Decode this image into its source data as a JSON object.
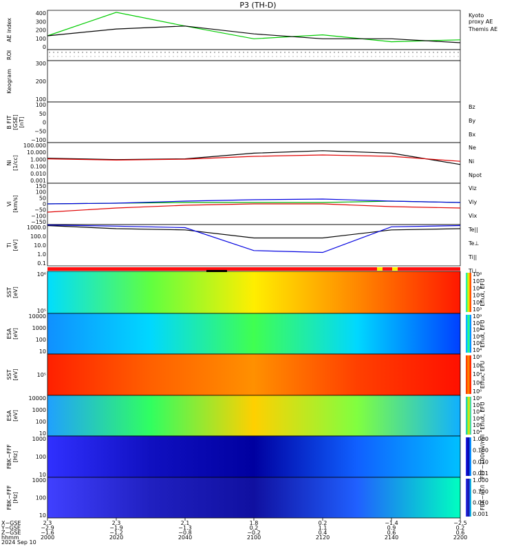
{
  "title": "P3 (TH-D)",
  "panels": [
    {
      "ylabel": "AE index",
      "ticks": [
        "400",
        "300",
        "200",
        "100",
        "0"
      ],
      "legend": [
        {
          "text": "Kyoto\nproxy AE",
          "color": "#00cc00"
        },
        {
          "text": "Themis AE",
          "color": "#000000"
        }
      ]
    },
    {
      "ylabel": "ROI",
      "ticks": [],
      "legend": []
    },
    {
      "ylabel": "Keogram",
      "ticks": [
        "300",
        "200",
        "100"
      ],
      "legend": []
    },
    {
      "ylabel": "B FIT\n[GSE]\n[nT]",
      "ticks": [
        "100",
        "50",
        "0",
        "−50",
        "−100"
      ],
      "legend": [
        {
          "text": "Bz",
          "color": "#e00000"
        },
        {
          "text": "By",
          "color": "#00b000"
        },
        {
          "text": "Bx",
          "color": "#0000e0"
        }
      ]
    },
    {
      "ylabel": "Ni\n[1/cc]",
      "ticks": [
        "100.000",
        "10.000",
        "1.000",
        "0.100",
        "0.010",
        "0.001"
      ],
      "legend": [
        {
          "text": "Ne",
          "color": "#e00000"
        },
        {
          "text": "Ni",
          "color": "#000000"
        },
        {
          "text": "Npot",
          "color": "#0000e0"
        }
      ]
    },
    {
      "ylabel": "Vi\n[km/s]",
      "ticks": [
        "150",
        "100",
        "50",
        "0",
        "−50",
        "−100",
        "−150"
      ],
      "legend": [
        {
          "text": "Viz",
          "color": "#e00000"
        },
        {
          "text": "Viy",
          "color": "#00b000"
        },
        {
          "text": "Vix",
          "color": "#0000e0"
        }
      ]
    },
    {
      "ylabel": "Ti\n[eV]",
      "ticks": [
        "1000.0",
        "100.0",
        "10.0",
        "1.0",
        "0.1"
      ],
      "legend": [
        {
          "text": "Te||",
          "color": "#000000"
        },
        {
          "text": "Te⊥",
          "color": "#e00000"
        },
        {
          "text": "Ti||",
          "color": "#00b000"
        },
        {
          "text": "Ti⊥",
          "color": "#0000e0"
        }
      ]
    },
    {
      "ylabel": "SST\n[eV]",
      "ticks": [
        "10⁶",
        "10⁵"
      ],
      "legend": []
    },
    {
      "ylabel": "ESA\n[eV]",
      "ticks": [
        "10000",
        "1000",
        "100",
        "10"
      ],
      "legend": []
    },
    {
      "ylabel": "SST\n[eV]",
      "ticks": [
        "10⁵"
      ],
      "legend": []
    },
    {
      "ylabel": "ESA\n[eV]",
      "ticks": [
        "10000",
        "1000",
        "100",
        "10"
      ],
      "legend": []
    },
    {
      "ylabel": "FBK−FFF\n[Hz]",
      "ticks": [
        "1000",
        "100",
        "10"
      ],
      "legend": []
    },
    {
      "ylabel": "FBK−FFF\n[Hz]",
      "ticks": [
        "1000",
        "100",
        "10"
      ],
      "legend": []
    }
  ],
  "colorbars": [
    {
      "label": "Eflux, EFU",
      "ticks": [
        "10⁸",
        "10⁷",
        "10⁶",
        "10⁵",
        "10⁴",
        "10³"
      ]
    },
    {
      "label": "Eflux, EFU",
      "ticks": [
        "10⁹",
        "10⁸",
        "10⁷",
        "10⁶",
        "10⁵",
        "10⁴"
      ]
    },
    {
      "label": "Eflux, EFU",
      "ticks": [
        "10⁸",
        "10⁶",
        "10⁴",
        "10²",
        "10⁰"
      ]
    },
    {
      "label": "Eflux, EFU",
      "ticks": [
        "10⁹",
        "10⁸",
        "10⁷",
        "10⁶",
        "10⁵",
        "10⁴"
      ]
    },
    {
      "label": "FFF−100mV/m/l",
      "ticks": [
        "1.000",
        "0.100",
        "0.010",
        "0.001"
      ]
    },
    {
      "label": "FBK−nT/l",
      "ticks": [
        "1.000",
        "0.100",
        "0.010",
        "0.001"
      ]
    }
  ],
  "xaxis": {
    "rows": [
      "X−GSE",
      "Y−GSE",
      "Z−GSE",
      "hhmm",
      "2024 Sep 10"
    ],
    "cols": [
      [
        "2.3",
        "−2.9",
        "−1.6",
        "2000"
      ],
      [
        "2.3",
        "−1.9",
        "−1.2",
        "2020"
      ],
      [
        "2.1",
        "−1.3",
        "−0.8",
        "2040"
      ],
      [
        "1.8",
        "0.2",
        "−0.2",
        "2100"
      ],
      [
        "0.2",
        "1.1",
        "0.4",
        "2120"
      ],
      [
        "−1.4",
        "0.9",
        "0.6",
        "2140"
      ],
      [
        "−2.5",
        "0.2",
        "0.6",
        "2200"
      ]
    ]
  },
  "colors": {
    "plasma_low": "#1a1aff",
    "plasma_mid": "#00dd00",
    "plasma_high": "#ff2000"
  },
  "chart_data": [
    {
      "type": "line",
      "title": "P3 (TH-D)",
      "ylabel": "AE index",
      "ylim": [
        0,
        400
      ],
      "x": [
        "2000",
        "2020",
        "2040",
        "2100",
        "2120",
        "2140",
        "2200"
      ],
      "series": [
        {
          "name": "Kyoto proxy AE",
          "values": [
            140,
            380,
            240,
            110,
            150,
            80,
            100
          ]
        },
        {
          "name": "Themis AE",
          "values": [
            140,
            210,
            240,
            160,
            110,
            110,
            70
          ]
        }
      ]
    },
    {
      "type": "line",
      "ylabel": "Ni",
      "ylim": [
        0.001,
        100
      ],
      "x": [
        "2000",
        "2020",
        "2040",
        "2100",
        "2120",
        "2140",
        "2200"
      ],
      "series": [
        {
          "name": "Ni",
          "values": [
            1.2,
            0.8,
            1.0,
            5,
            10,
            5,
            0.2
          ]
        },
        {
          "name": "Ne",
          "values": [
            1.0,
            0.7,
            0.9,
            2,
            3,
            2,
            0.5
          ]
        }
      ]
    },
    {
      "type": "line",
      "ylabel": "Vi",
      "ylim": [
        -150,
        150
      ],
      "x": [
        "2000",
        "2020",
        "2040",
        "2100",
        "2120",
        "2140",
        "2200"
      ],
      "series": [
        {
          "name": "Viz",
          "values": [
            -60,
            -30,
            -10,
            0,
            0,
            -20,
            -30
          ]
        },
        {
          "name": "Viy",
          "values": [
            0,
            5,
            10,
            10,
            10,
            20,
            10
          ]
        },
        {
          "name": "Vix",
          "values": [
            0,
            5,
            20,
            30,
            35,
            20,
            10
          ]
        }
      ]
    },
    {
      "type": "line",
      "ylabel": "Ti",
      "ylim": [
        0.1,
        1000
      ],
      "x": [
        "2000",
        "2020",
        "2040",
        "2100",
        "2120",
        "2140",
        "2200"
      ],
      "series": [
        {
          "name": "Te||",
          "values": [
            800,
            400,
            300,
            50,
            50,
            300,
            400
          ]
        },
        {
          "name": "Ti⊥",
          "values": [
            900,
            700,
            500,
            3,
            2,
            600,
            800
          ]
        }
      ]
    }
  ]
}
